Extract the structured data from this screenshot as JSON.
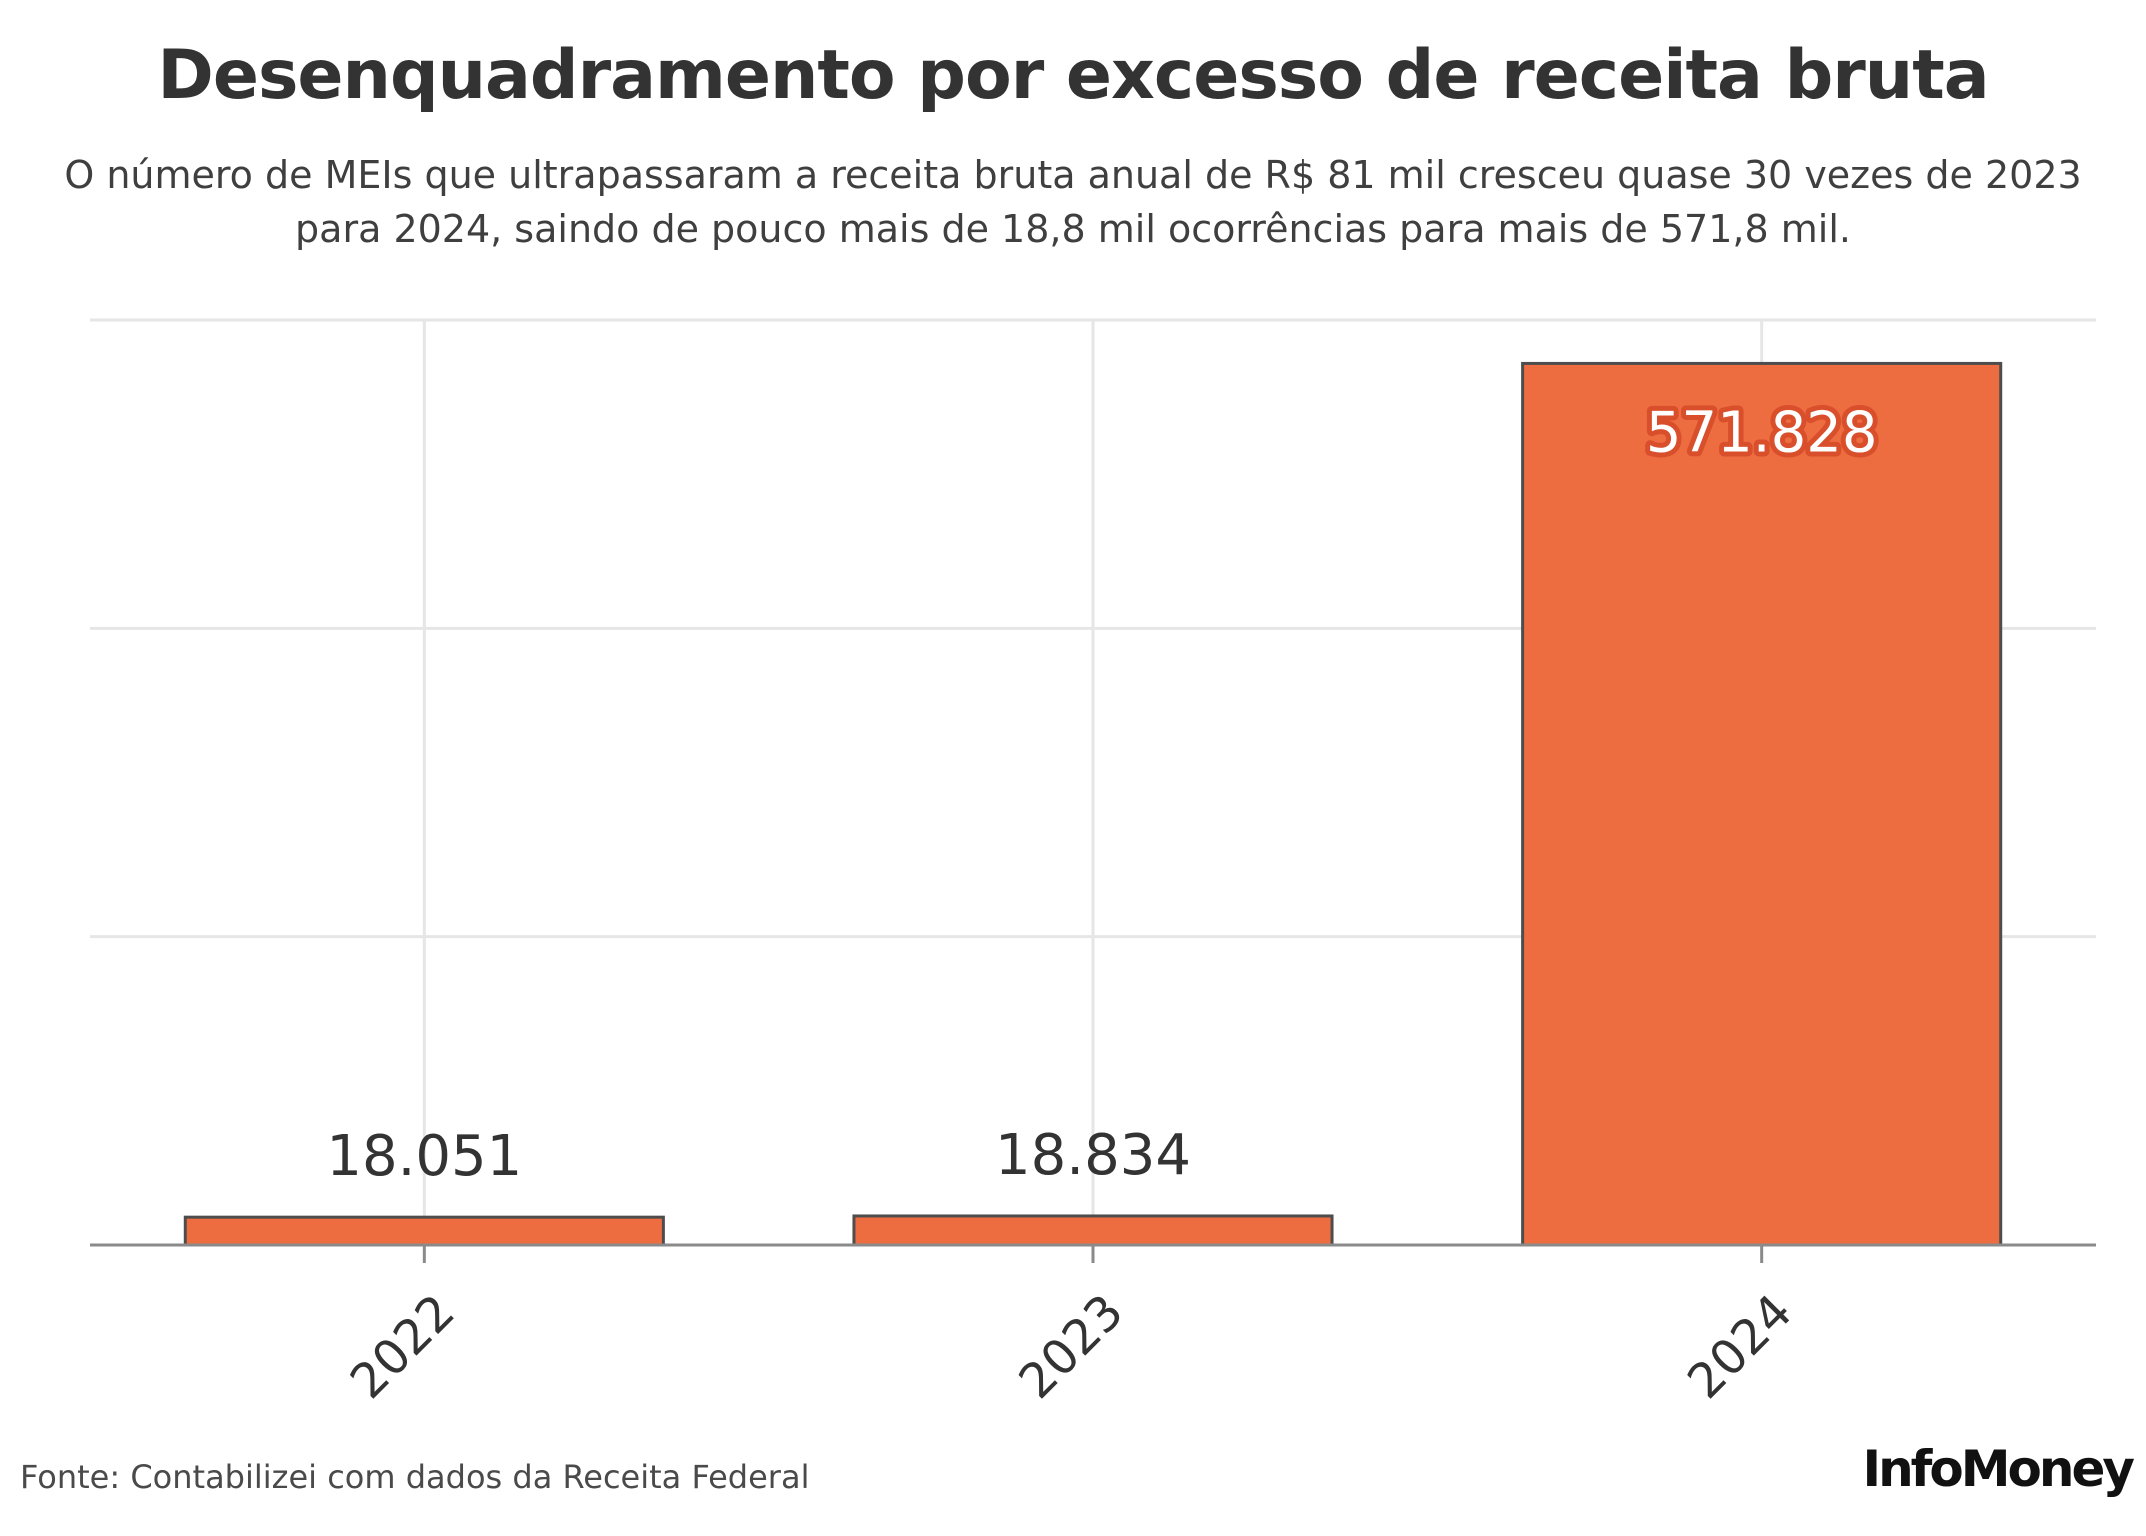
{
  "chart_data": {
    "type": "bar",
    "title": "Desenquadramento por excesso de receita bruta",
    "subtitle_lines": [
      "O número de MEIs que ultrapassaram a receita bruta anual de R$ 81 mil cresceu quase 30 vezes de 2023",
      "para 2024, saindo de pouco mais de 18,8 mil ocorrências para mais de 571,8 mil."
    ],
    "categories": [
      "2022",
      "2023",
      "2024"
    ],
    "values": [
      18051,
      18834,
      571828
    ],
    "value_labels": [
      "18.051",
      "18.834",
      "571.828"
    ],
    "xlabel": "",
    "ylabel": "",
    "ylim": [
      0,
      600000
    ],
    "y_gridlines": [
      200000,
      400000,
      600000
    ],
    "y_tick_labels_shown": false,
    "grid": true,
    "legend": "none",
    "bar_color": "#ed6d41",
    "bar_stroke": "#4d4d4d",
    "source": "Fonte: Contabilizei com dados da Receita Federal",
    "brand": "InfoMoney"
  }
}
